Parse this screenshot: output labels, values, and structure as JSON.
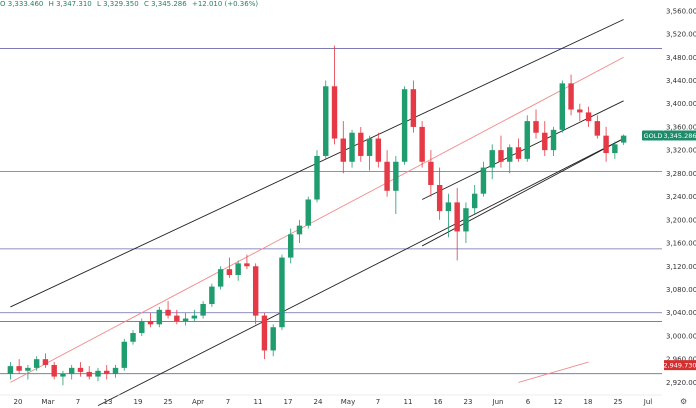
{
  "ohlc": {
    "open": "O 3,333.460",
    "high": "H 3,347.310",
    "low": "L 3,329.350",
    "close": "C 3,345.286",
    "change": "+12.010 (+0.36%)"
  },
  "symbol_badge": {
    "symbol": "GOLD",
    "price": "3,345.286",
    "color": "#1f8b6b"
  },
  "low_badge": {
    "price": "2,949.730",
    "color": "#d32f2f"
  },
  "colors": {
    "up": "#1f9d6e",
    "down": "#e53945",
    "channel": "#222222",
    "mid_line": "#f28a8a",
    "level": "#6a6aa8"
  },
  "chart_data": {
    "type": "candlestick",
    "y_axis": [
      "3,560.000",
      "3,520.000",
      "3,480.000",
      "3,440.000",
      "3,400.000",
      "3,360.000",
      "3,320.000",
      "3,280.000",
      "3,240.000",
      "3,200.000",
      "3,160.000",
      "3,120.000",
      "3,080.000",
      "3,040.000",
      "3,000.000",
      "2,960.000",
      "2,920.000"
    ],
    "y_range": [
      2900,
      3570
    ],
    "x_axis": [
      "20",
      "Mar",
      "7",
      "13",
      "19",
      "25",
      "Apr",
      "7",
      "11",
      "17",
      "24",
      "May",
      "7",
      "11",
      "16",
      "23",
      "Jun",
      "6",
      "12",
      "18",
      "25",
      "Jul"
    ],
    "levels": [
      3495,
      3283,
      3150,
      3040,
      3025,
      2935
    ],
    "candles": [
      [
        2935,
        2955,
        2925,
        2948
      ],
      [
        2948,
        2960,
        2935,
        2940
      ],
      [
        2940,
        2950,
        2925,
        2945
      ],
      [
        2945,
        2965,
        2940,
        2960
      ],
      [
        2960,
        2970,
        2945,
        2950
      ],
      [
        2950,
        2955,
        2925,
        2930
      ],
      [
        2930,
        2940,
        2915,
        2935
      ],
      [
        2935,
        2950,
        2925,
        2945
      ],
      [
        2945,
        2955,
        2930,
        2938
      ],
      [
        2938,
        2948,
        2925,
        2930
      ],
      [
        2930,
        2945,
        2922,
        2940
      ],
      [
        2940,
        2950,
        2925,
        2935
      ],
      [
        2935,
        2950,
        2928,
        2945
      ],
      [
        2945,
        2995,
        2940,
        2990
      ],
      [
        2990,
        3010,
        2985,
        3005
      ],
      [
        3005,
        3030,
        3000,
        3025
      ],
      [
        3025,
        3040,
        3015,
        3020
      ],
      [
        3020,
        3050,
        3015,
        3045
      ],
      [
        3045,
        3060,
        3030,
        3035
      ],
      [
        3035,
        3045,
        3020,
        3025
      ],
      [
        3025,
        3040,
        3018,
        3030
      ],
      [
        3030,
        3045,
        3025,
        3035
      ],
      [
        3035,
        3060,
        3030,
        3055
      ],
      [
        3055,
        3090,
        3050,
        3085
      ],
      [
        3085,
        3120,
        3080,
        3115
      ],
      [
        3115,
        3135,
        3100,
        3105
      ],
      [
        3105,
        3130,
        3095,
        3125
      ],
      [
        3125,
        3140,
        3115,
        3120
      ],
      [
        3120,
        3125,
        3020,
        3035
      ],
      [
        3035,
        3040,
        2960,
        2975
      ],
      [
        2975,
        3020,
        2965,
        3015
      ],
      [
        3015,
        3140,
        3010,
        3135
      ],
      [
        3135,
        3185,
        3125,
        3175
      ],
      [
        3175,
        3200,
        3160,
        3190
      ],
      [
        3190,
        3240,
        3185,
        3235
      ],
      [
        3235,
        3320,
        3230,
        3310
      ],
      [
        3310,
        3440,
        3305,
        3430
      ],
      [
        3430,
        3500,
        3330,
        3340
      ],
      [
        3340,
        3370,
        3280,
        3300
      ],
      [
        3300,
        3355,
        3290,
        3350
      ],
      [
        3350,
        3360,
        3300,
        3310
      ],
      [
        3310,
        3345,
        3285,
        3340
      ],
      [
        3340,
        3350,
        3290,
        3300
      ],
      [
        3300,
        3320,
        3240,
        3250
      ],
      [
        3250,
        3310,
        3210,
        3300
      ],
      [
        3300,
        3430,
        3295,
        3425
      ],
      [
        3425,
        3440,
        3350,
        3360
      ],
      [
        3360,
        3370,
        3290,
        3300
      ],
      [
        3300,
        3320,
        3240,
        3260
      ],
      [
        3260,
        3290,
        3200,
        3215
      ],
      [
        3215,
        3245,
        3170,
        3230
      ],
      [
        3230,
        3255,
        3130,
        3180
      ],
      [
        3180,
        3230,
        3160,
        3220
      ],
      [
        3220,
        3260,
        3210,
        3245
      ],
      [
        3245,
        3300,
        3240,
        3290
      ],
      [
        3290,
        3330,
        3270,
        3320
      ],
      [
        3320,
        3345,
        3290,
        3300
      ],
      [
        3300,
        3330,
        3280,
        3325
      ],
      [
        3325,
        3340,
        3300,
        3305
      ],
      [
        3305,
        3380,
        3300,
        3370
      ],
      [
        3370,
        3390,
        3340,
        3350
      ],
      [
        3350,
        3370,
        3310,
        3320
      ],
      [
        3320,
        3360,
        3310,
        3355
      ],
      [
        3355,
        3440,
        3350,
        3435
      ],
      [
        3435,
        3450,
        3380,
        3390
      ],
      [
        3390,
        3400,
        3370,
        3385
      ],
      [
        3385,
        3395,
        3360,
        3370
      ],
      [
        3370,
        3380,
        3340,
        3345
      ],
      [
        3345,
        3360,
        3300,
        3315
      ],
      [
        3315,
        3335,
        3305,
        3330
      ],
      [
        3333,
        3347,
        3329,
        3345
      ]
    ],
    "channels": [
      {
        "kind": "upper",
        "points": [
          [
            0,
            3050
          ],
          [
            70,
            3545
          ]
        ]
      },
      {
        "kind": "mid",
        "points": [
          [
            0,
            2920
          ],
          [
            70,
            3480
          ]
        ]
      },
      {
        "kind": "lower",
        "points": [
          [
            10,
            2880
          ],
          [
            70,
            3340
          ]
        ]
      },
      {
        "kind": "inner-top",
        "points": [
          [
            47,
            3235
          ],
          [
            70,
            3405
          ]
        ]
      },
      {
        "kind": "inner-bottom",
        "points": [
          [
            47,
            3155
          ],
          [
            70,
            3340
          ]
        ]
      },
      {
        "kind": "short",
        "points": [
          [
            58,
            2920
          ],
          [
            66,
            2955
          ]
        ]
      }
    ]
  }
}
